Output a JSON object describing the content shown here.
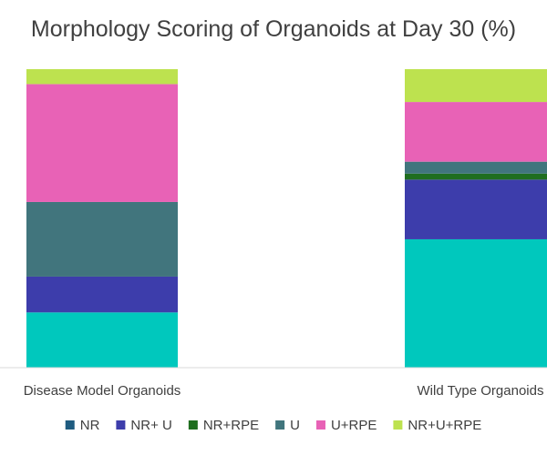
{
  "chart_data": {
    "type": "bar",
    "stacked": true,
    "title": "Morphology Scoring  of Organoids at Day 30 (%)",
    "xlabel": "",
    "ylabel": "",
    "ylim": [
      0,
      100
    ],
    "grid": false,
    "legend_position": "bottom",
    "categories": [
      "Disease Model Organoids",
      "Wild Type Organoids"
    ],
    "series": [
      {
        "name": "NR",
        "color": "#00c8bd",
        "values": [
          18.5,
          43
        ]
      },
      {
        "name": "NR+ U",
        "color": "#3d3dab",
        "values": [
          12,
          20
        ]
      },
      {
        "name": "NR+RPE",
        "color": "#1f6e1f",
        "values": [
          0,
          2
        ]
      },
      {
        "name": "U",
        "color": "#41757d",
        "values": [
          25,
          4
        ]
      },
      {
        "name": "U+RPE",
        "color": "#e862b6",
        "values": [
          39.5,
          20
        ]
      },
      {
        "name": "NR+U+RPE",
        "color": "#bde24f",
        "values": [
          5,
          11
        ]
      }
    ],
    "legend_swatch_colors": [
      "#1f5c80",
      "#3d3dab",
      "#1f6e1f",
      "#41757d",
      "#e862b6",
      "#bde24f"
    ]
  }
}
